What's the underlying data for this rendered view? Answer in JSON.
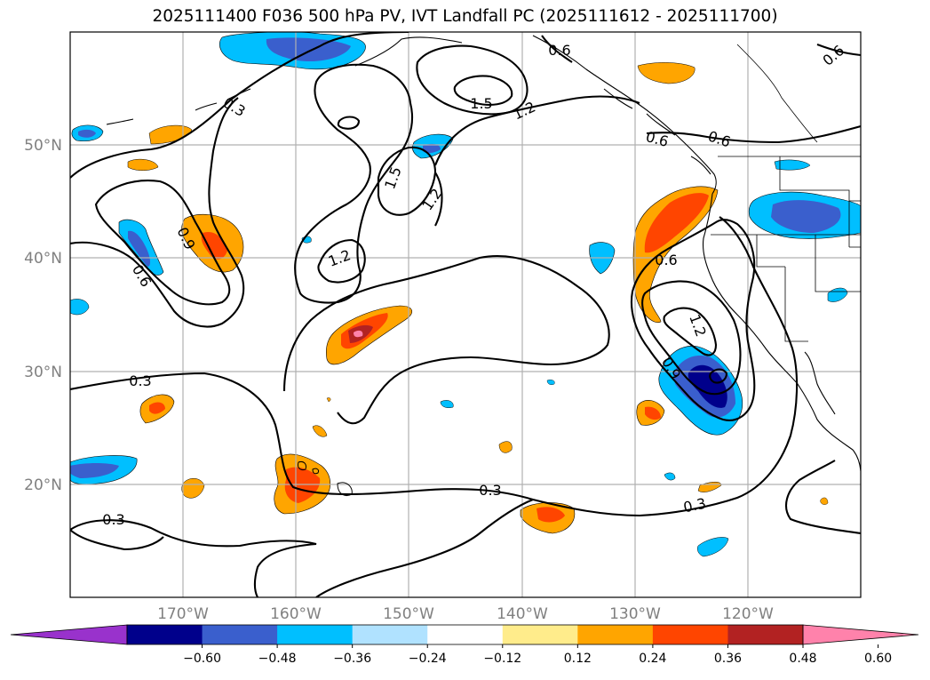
{
  "title": "2025111400 F036 500 hPa PV, IVT Landfall PC (2025111612 - 2025111700)",
  "map": {
    "lat_labels": [
      "50°N",
      "40°N",
      "30°N",
      "20°N"
    ],
    "lon_labels": [
      "170°W",
      "160°W",
      "150°W",
      "140°W",
      "130°W",
      "120°W"
    ],
    "contour_levels_labeled": [
      "0.3",
      "0.6",
      "0.9",
      "1.2",
      "1.5"
    ],
    "contour_labels": [
      {
        "text": "0.3",
        "rot": 30
      },
      {
        "text": "0.3",
        "rot": 0
      },
      {
        "text": "0.3",
        "rot": 0
      },
      {
        "text": "0.3",
        "rot": 0
      },
      {
        "text": "0.3",
        "rot": -12
      },
      {
        "text": "0.9",
        "rot": 65
      },
      {
        "text": "0.6",
        "rot": 60
      },
      {
        "text": "1.2",
        "rot": -20
      },
      {
        "text": "1.5",
        "rot": -70
      },
      {
        "text": "1.2",
        "rot": -55
      },
      {
        "text": "1.5",
        "rot": 0
      },
      {
        "text": "1.2",
        "rot": -25
      },
      {
        "text": "0.6",
        "rot": 0
      },
      {
        "text": "0.6",
        "rot": 15
      },
      {
        "text": "0.6",
        "rot": 18
      },
      {
        "text": "0.6",
        "rot": -40
      },
      {
        "text": "1.2",
        "rot": 70
      },
      {
        "text": "0.9",
        "rot": 60
      },
      {
        "text": "0.6",
        "rot": 0
      }
    ]
  },
  "colorbar": {
    "ticks": [
      "−0.60",
      "−0.48",
      "−0.36",
      "−0.24",
      "−0.12",
      "0.12",
      "0.24",
      "0.36",
      "0.48",
      "0.60"
    ],
    "colors": [
      "#9932cc",
      "#00008b",
      "#3a5fcd",
      "#00bfff",
      "#b0e2ff",
      "#ffffff",
      "#ffec8b",
      "#ffa500",
      "#ff4500",
      "#b22222",
      "#ff82ab"
    ]
  },
  "colors": {
    "neg_strong": "#00008b",
    "neg_mid": "#3a5fcd",
    "neg_light": "#00bfff",
    "pos_light": "#ffa500",
    "pos_mid": "#ff4500",
    "pos_strong": "#b22222",
    "pos_max": "#ff82ab"
  }
}
